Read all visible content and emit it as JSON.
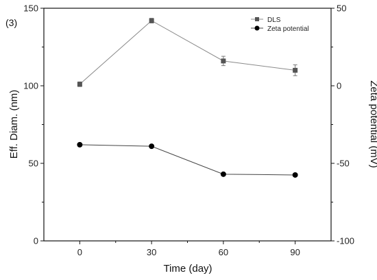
{
  "chart_data": {
    "type": "line",
    "panel_label": "(3)",
    "xlabel": "Time (day)",
    "ylabel_left": "Eff. Diam. (nm)",
    "ylabel_right": "Zeta potential (mV)",
    "x": [
      0,
      30,
      60,
      90
    ],
    "xlim": [
      -15,
      105
    ],
    "ylim_left": [
      0,
      150
    ],
    "ylim_right": [
      -100,
      50
    ],
    "xticks": [
      0,
      30,
      60,
      90
    ],
    "yticks_left": [
      0,
      50,
      100,
      150
    ],
    "yticks_right": [
      -100,
      -50,
      0,
      50
    ],
    "grid": false,
    "legend_position": "top-right",
    "series": [
      {
        "name": "DLS",
        "axis": "left",
        "marker": "square",
        "color": "#555555",
        "line_color": "#8a8a8a",
        "values": [
          101,
          142,
          116,
          110
        ],
        "errors": [
          1.5,
          1.5,
          3,
          3.5
        ]
      },
      {
        "name": "Zeta potential",
        "axis": "right",
        "marker": "circle",
        "color": "#000000",
        "line_color": "#444444",
        "values": [
          -38,
          -39,
          -57,
          -57.5
        ],
        "errors": []
      }
    ]
  }
}
